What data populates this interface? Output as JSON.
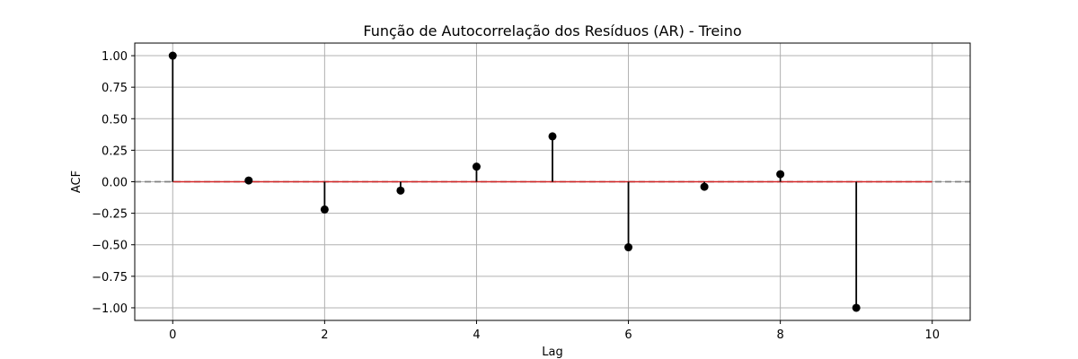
{
  "chart_data": {
    "type": "stem",
    "title": "Função de Autocorrelação dos Resíduos (AR) - Treino",
    "xlabel": "Lag",
    "ylabel": "ACF",
    "xlim": [
      -0.5,
      10.5
    ],
    "ylim": [
      -1.1,
      1.1
    ],
    "x_ticks": [
      0,
      2,
      4,
      6,
      8,
      10
    ],
    "x_tick_labels": [
      "0",
      "2",
      "4",
      "6",
      "8",
      "10"
    ],
    "y_ticks": [
      1.0,
      0.75,
      0.5,
      0.25,
      0.0,
      -0.25,
      -0.5,
      -0.75,
      -1.0
    ],
    "y_tick_labels": [
      "1.00",
      "0.75",
      "0.50",
      "0.25",
      "0.00",
      "−0.25",
      "−0.50",
      "−0.75",
      "−1.00"
    ],
    "grid": true,
    "series": [
      {
        "x": [
          0,
          1,
          2,
          3,
          4,
          5,
          6,
          7,
          8,
          9
        ],
        "values": [
          1.0,
          0.01,
          -0.22,
          -0.07,
          0.12,
          0.36,
          -0.52,
          -0.04,
          0.06,
          -1.0
        ]
      }
    ],
    "baseline": {
      "y": 0,
      "x_range": [
        0,
        10
      ],
      "color": "#d62728"
    },
    "reference_line": {
      "y": 0,
      "style": "dashed",
      "color": "#808080"
    },
    "colors": {
      "stem": "#000000",
      "marker": "#000000",
      "grid": "#b0b0b0"
    }
  }
}
